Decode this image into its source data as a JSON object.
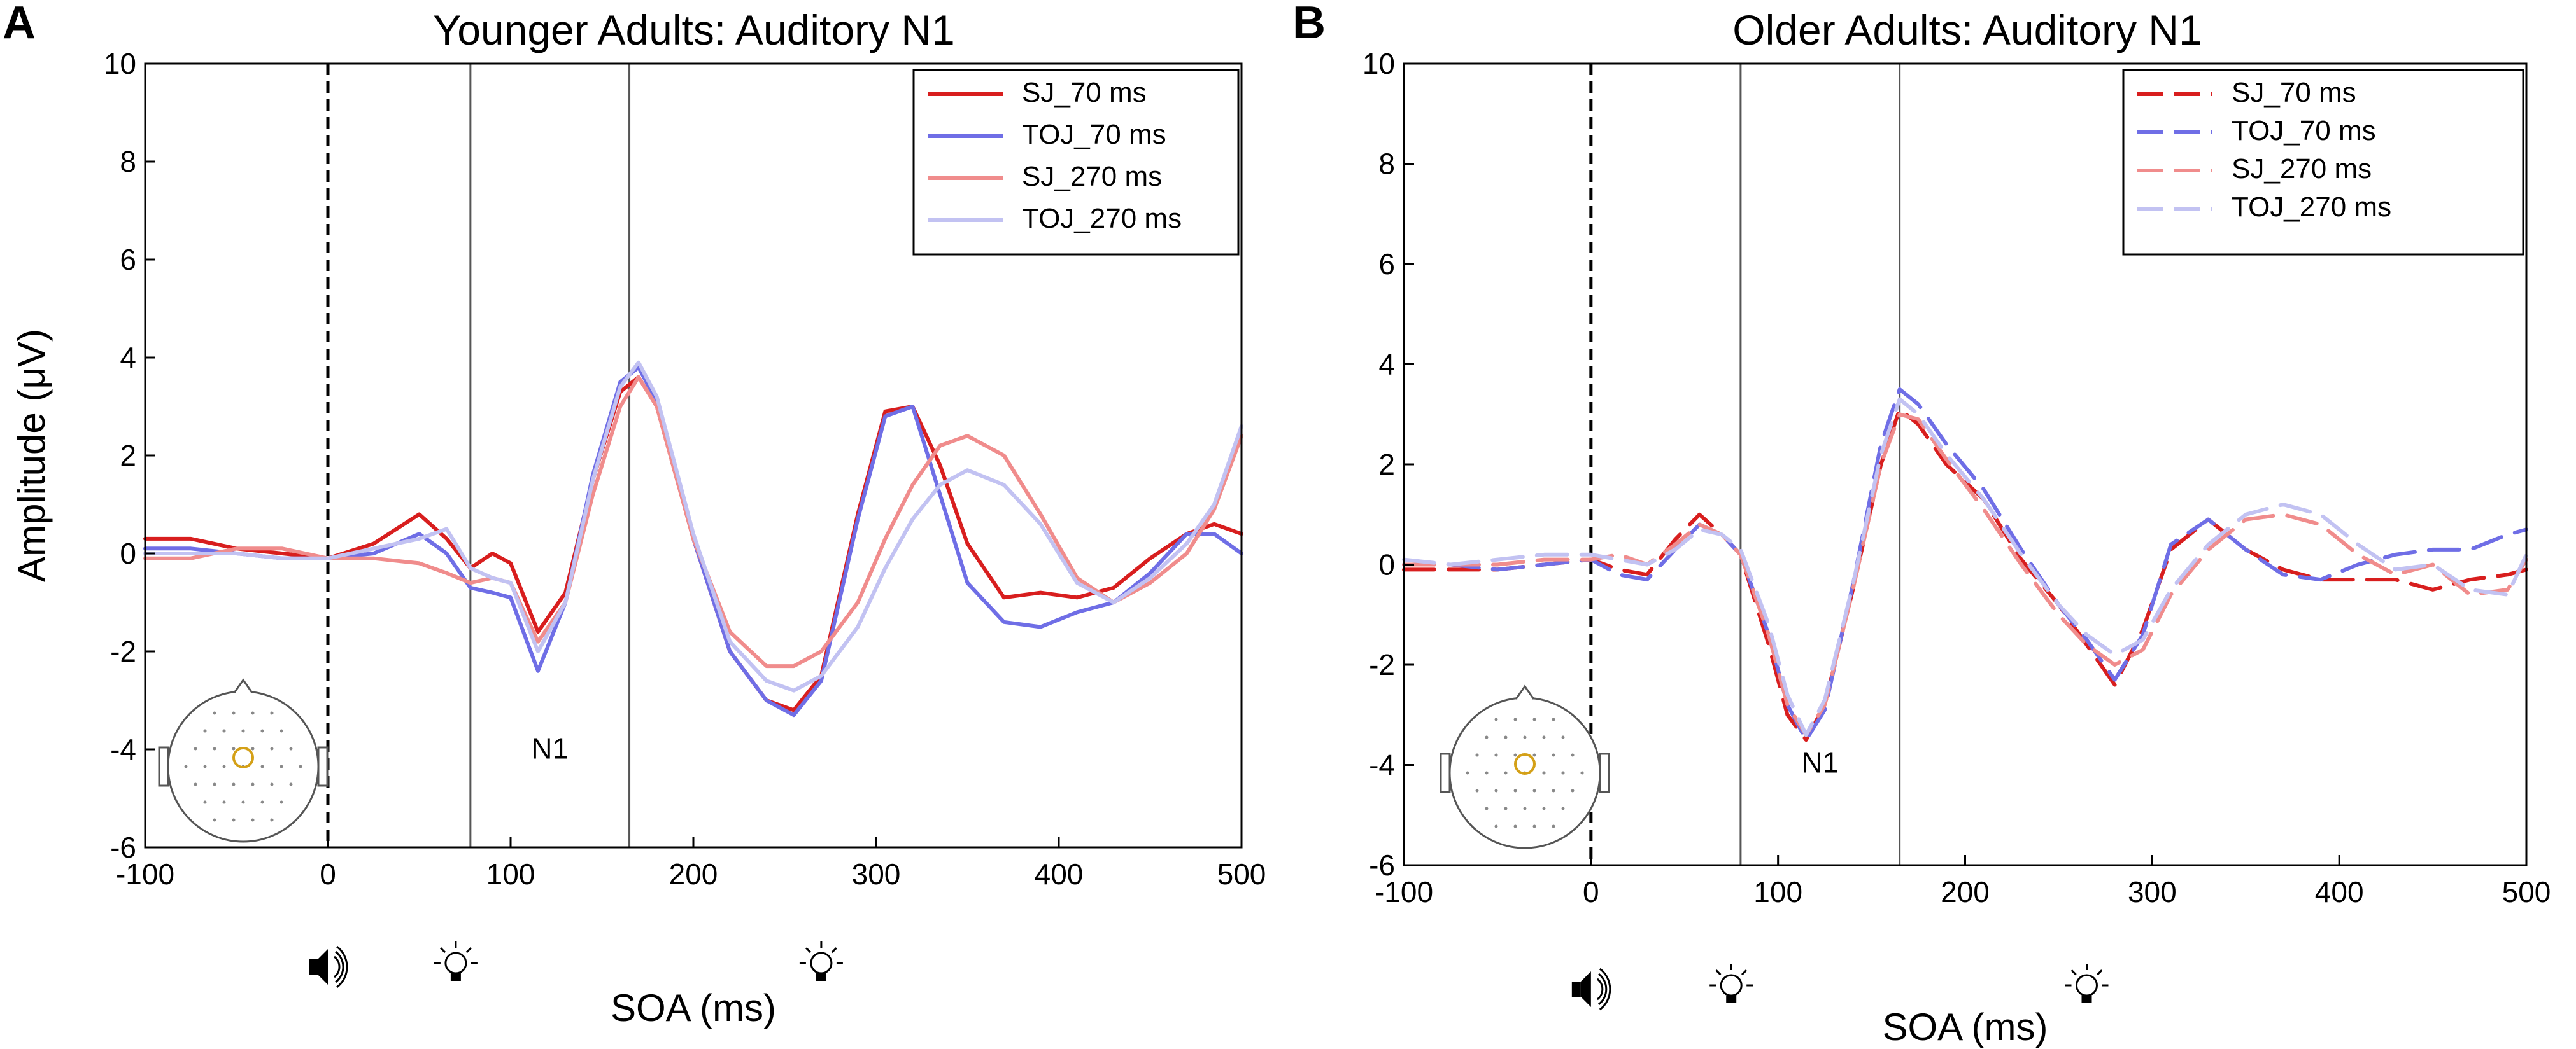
{
  "figure": {
    "panels": [
      "A",
      "B"
    ]
  },
  "chart_data": [
    {
      "type": "line",
      "panel_label": "A",
      "title": "Younger Adults: Auditory N1",
      "xlabel": "SOA (ms)",
      "ylabel": "Amplitude (μV)",
      "xlim": [
        -100,
        500
      ],
      "ylim": [
        -6,
        10
      ],
      "xticks": [
        -100,
        0,
        100,
        200,
        300,
        400,
        500
      ],
      "yticks": [
        -6,
        -4,
        -2,
        0,
        2,
        4,
        6,
        8,
        10
      ],
      "annotation": "N1",
      "line_style": "solid",
      "onset_marker_x": 0,
      "window_x": [
        78,
        165
      ],
      "event_icons": [
        {
          "icon": "speaker-icon",
          "x": 0
        },
        {
          "icon": "lightbulb-icon",
          "x": 70
        },
        {
          "icon": "lightbulb-icon",
          "x": 270
        }
      ],
      "series": [
        {
          "name": "SJ_70 ms",
          "color": "#d81e1e",
          "x": [
            -100,
            -75,
            -50,
            -25,
            0,
            25,
            50,
            65,
            78,
            90,
            100,
            115,
            130,
            145,
            160,
            170,
            180,
            200,
            220,
            240,
            255,
            270,
            290,
            305,
            320,
            335,
            350,
            370,
            390,
            410,
            430,
            450,
            470,
            485,
            500
          ],
          "y": [
            0.3,
            0.3,
            0.1,
            0.0,
            -0.1,
            0.2,
            0.8,
            0.3,
            -0.3,
            0.0,
            -0.2,
            -1.6,
            -0.8,
            1.5,
            3.3,
            3.6,
            3.0,
            0.3,
            -2.0,
            -3.0,
            -3.2,
            -2.5,
            0.8,
            2.9,
            3.0,
            1.8,
            0.2,
            -0.9,
            -0.8,
            -0.9,
            -0.7,
            -0.1,
            0.4,
            0.6,
            0.4
          ]
        },
        {
          "name": "TOJ_70 ms",
          "color": "#6f6ee6",
          "x": [
            -100,
            -75,
            -50,
            -25,
            0,
            25,
            50,
            65,
            78,
            90,
            100,
            115,
            130,
            145,
            160,
            170,
            180,
            200,
            220,
            240,
            255,
            270,
            290,
            305,
            320,
            335,
            350,
            370,
            390,
            410,
            430,
            450,
            470,
            485,
            500
          ],
          "y": [
            0.1,
            0.1,
            0.0,
            -0.1,
            -0.1,
            0.0,
            0.4,
            0.0,
            -0.7,
            -0.8,
            -0.9,
            -2.4,
            -1.0,
            1.6,
            3.5,
            3.8,
            3.1,
            0.3,
            -2.0,
            -3.0,
            -3.3,
            -2.6,
            0.7,
            2.8,
            3.0,
            1.2,
            -0.6,
            -1.4,
            -1.5,
            -1.2,
            -1.0,
            -0.4,
            0.4,
            0.4,
            0.0
          ]
        },
        {
          "name": "SJ_270 ms",
          "color": "#f08c8c",
          "x": [
            -100,
            -75,
            -50,
            -25,
            0,
            25,
            50,
            65,
            78,
            90,
            100,
            115,
            130,
            145,
            160,
            170,
            180,
            200,
            220,
            240,
            255,
            270,
            290,
            305,
            320,
            335,
            350,
            370,
            390,
            410,
            430,
            450,
            470,
            485,
            500
          ],
          "y": [
            -0.1,
            -0.1,
            0.1,
            0.1,
            -0.1,
            -0.1,
            -0.2,
            -0.4,
            -0.6,
            -0.5,
            -0.6,
            -1.8,
            -1.0,
            1.2,
            3.0,
            3.6,
            3.0,
            0.3,
            -1.6,
            -2.3,
            -2.3,
            -2.0,
            -1.0,
            0.3,
            1.4,
            2.2,
            2.4,
            2.0,
            0.8,
            -0.5,
            -1.0,
            -0.6,
            0.0,
            0.9,
            2.4
          ]
        },
        {
          "name": "TOJ_270 ms",
          "color": "#c2c2f2",
          "x": [
            -100,
            -75,
            -50,
            -25,
            0,
            25,
            50,
            65,
            78,
            90,
            100,
            115,
            130,
            145,
            160,
            170,
            180,
            200,
            220,
            240,
            255,
            270,
            290,
            305,
            320,
            335,
            350,
            370,
            390,
            410,
            430,
            450,
            470,
            485,
            500
          ],
          "y": [
            0.0,
            0.0,
            0.0,
            -0.1,
            -0.1,
            0.1,
            0.3,
            0.5,
            -0.3,
            -0.5,
            -0.6,
            -2.0,
            -1.0,
            1.5,
            3.4,
            3.9,
            3.2,
            0.4,
            -1.8,
            -2.6,
            -2.8,
            -2.5,
            -1.5,
            -0.3,
            0.7,
            1.4,
            1.7,
            1.4,
            0.6,
            -0.6,
            -1.0,
            -0.5,
            0.2,
            1.0,
            2.6
          ]
        }
      ]
    },
    {
      "type": "line",
      "panel_label": "B",
      "title": "Older Adults: Auditory N1",
      "xlabel": "SOA (ms)",
      "ylabel": "",
      "xlim": [
        -100,
        500
      ],
      "ylim": [
        -6,
        10
      ],
      "xticks": [
        -100,
        0,
        100,
        200,
        300,
        400,
        500
      ],
      "yticks": [
        -6,
        -4,
        -2,
        0,
        2,
        4,
        6,
        8,
        10
      ],
      "annotation": "N1",
      "line_style": "dashed",
      "onset_marker_x": 0,
      "window_x": [
        80,
        165
      ],
      "event_icons": [
        {
          "icon": "speaker-icon",
          "x": 0
        },
        {
          "icon": "lightbulb-icon",
          "x": 75
        },
        {
          "icon": "lightbulb-icon",
          "x": 265
        }
      ],
      "series": [
        {
          "name": "SJ_70 ms",
          "color": "#d81e1e",
          "x": [
            -100,
            -75,
            -50,
            -25,
            0,
            15,
            30,
            45,
            58,
            70,
            80,
            95,
            105,
            115,
            125,
            140,
            155,
            165,
            175,
            190,
            210,
            230,
            250,
            265,
            280,
            295,
            310,
            330,
            350,
            370,
            390,
            410,
            430,
            450,
            470,
            490,
            500
          ],
          "y": [
            -0.1,
            -0.1,
            -0.1,
            0.0,
            0.1,
            -0.1,
            -0.2,
            0.5,
            1.0,
            0.6,
            0.2,
            -1.6,
            -3.0,
            -3.5,
            -2.8,
            -0.5,
            2.0,
            3.1,
            2.8,
            2.0,
            1.3,
            0.1,
            -0.8,
            -1.6,
            -2.4,
            -1.3,
            0.3,
            0.9,
            0.3,
            -0.1,
            -0.3,
            -0.3,
            -0.3,
            -0.5,
            -0.3,
            -0.2,
            -0.1
          ]
        },
        {
          "name": "TOJ_70 ms",
          "color": "#6f6ee6",
          "x": [
            -100,
            -75,
            -50,
            -25,
            0,
            15,
            30,
            45,
            58,
            70,
            80,
            95,
            105,
            115,
            125,
            140,
            155,
            165,
            175,
            190,
            210,
            230,
            250,
            265,
            280,
            295,
            310,
            330,
            350,
            370,
            390,
            410,
            430,
            450,
            470,
            490,
            500
          ],
          "y": [
            0.0,
            0.0,
            -0.1,
            0.0,
            0.1,
            -0.2,
            -0.3,
            0.3,
            0.8,
            0.6,
            0.2,
            -1.4,
            -2.8,
            -3.5,
            -2.9,
            -0.4,
            2.4,
            3.5,
            3.2,
            2.4,
            1.5,
            0.3,
            -0.8,
            -1.5,
            -2.3,
            -1.4,
            0.4,
            0.9,
            0.3,
            -0.2,
            -0.3,
            0.0,
            0.2,
            0.3,
            0.3,
            0.6,
            0.7
          ]
        },
        {
          "name": "SJ_270 ms",
          "color": "#f08c8c",
          "x": [
            -100,
            -75,
            -50,
            -25,
            0,
            15,
            30,
            45,
            58,
            70,
            80,
            95,
            105,
            115,
            125,
            140,
            155,
            165,
            175,
            190,
            210,
            230,
            250,
            265,
            280,
            295,
            310,
            330,
            350,
            370,
            390,
            410,
            430,
            450,
            470,
            490,
            500
          ],
          "y": [
            0.0,
            0.0,
            0.0,
            0.1,
            0.1,
            0.2,
            0.0,
            0.4,
            0.8,
            0.6,
            0.2,
            -1.4,
            -2.8,
            -3.4,
            -2.8,
            -0.5,
            2.0,
            3.0,
            2.9,
            2.1,
            1.1,
            0.0,
            -1.0,
            -1.6,
            -2.0,
            -1.7,
            -0.6,
            0.3,
            0.9,
            1.0,
            0.8,
            0.2,
            -0.2,
            0.0,
            -0.6,
            -0.5,
            0.1
          ]
        },
        {
          "name": "TOJ_270 ms",
          "color": "#c2c2f2",
          "x": [
            -100,
            -75,
            -50,
            -25,
            0,
            15,
            30,
            45,
            58,
            70,
            80,
            95,
            105,
            115,
            125,
            140,
            155,
            165,
            175,
            190,
            210,
            230,
            250,
            265,
            280,
            295,
            310,
            330,
            350,
            370,
            390,
            410,
            430,
            450,
            470,
            490,
            500
          ],
          "y": [
            0.1,
            0.0,
            0.1,
            0.2,
            0.2,
            0.1,
            0.0,
            0.3,
            0.7,
            0.6,
            0.3,
            -1.2,
            -2.6,
            -3.4,
            -2.7,
            -0.4,
            2.2,
            3.3,
            3.0,
            2.2,
            1.3,
            0.2,
            -0.8,
            -1.4,
            -1.8,
            -1.5,
            -0.5,
            0.4,
            1.0,
            1.2,
            1.0,
            0.4,
            -0.1,
            0.0,
            -0.5,
            -0.6,
            0.2
          ]
        }
      ]
    }
  ]
}
